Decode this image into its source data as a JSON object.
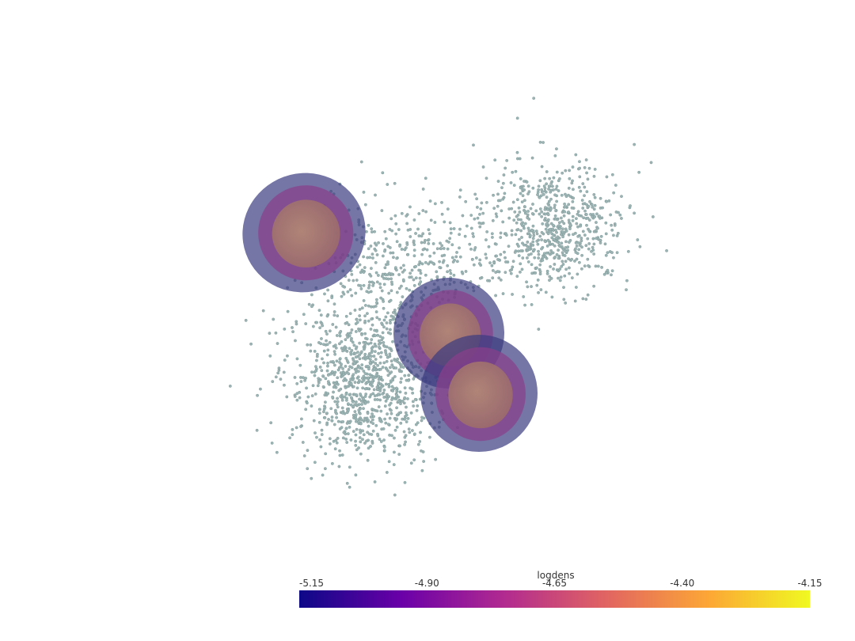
{
  "chart_data": {
    "type": "colorbar",
    "title": "logdens",
    "clim": [
      -5.15,
      -4.15
    ],
    "ticks": [
      -5.15,
      {
        "value": -4.9,
        "label": "-4.90"
      },
      -4.65,
      {
        "value": -4.4,
        "label": "-4.40"
      },
      -4.15
    ],
    "colors": [
      "#0d0887",
      "#6a00a8",
      "#b12a90",
      "#e16462",
      "#fca636",
      "#f0f921"
    ]
  }
}
